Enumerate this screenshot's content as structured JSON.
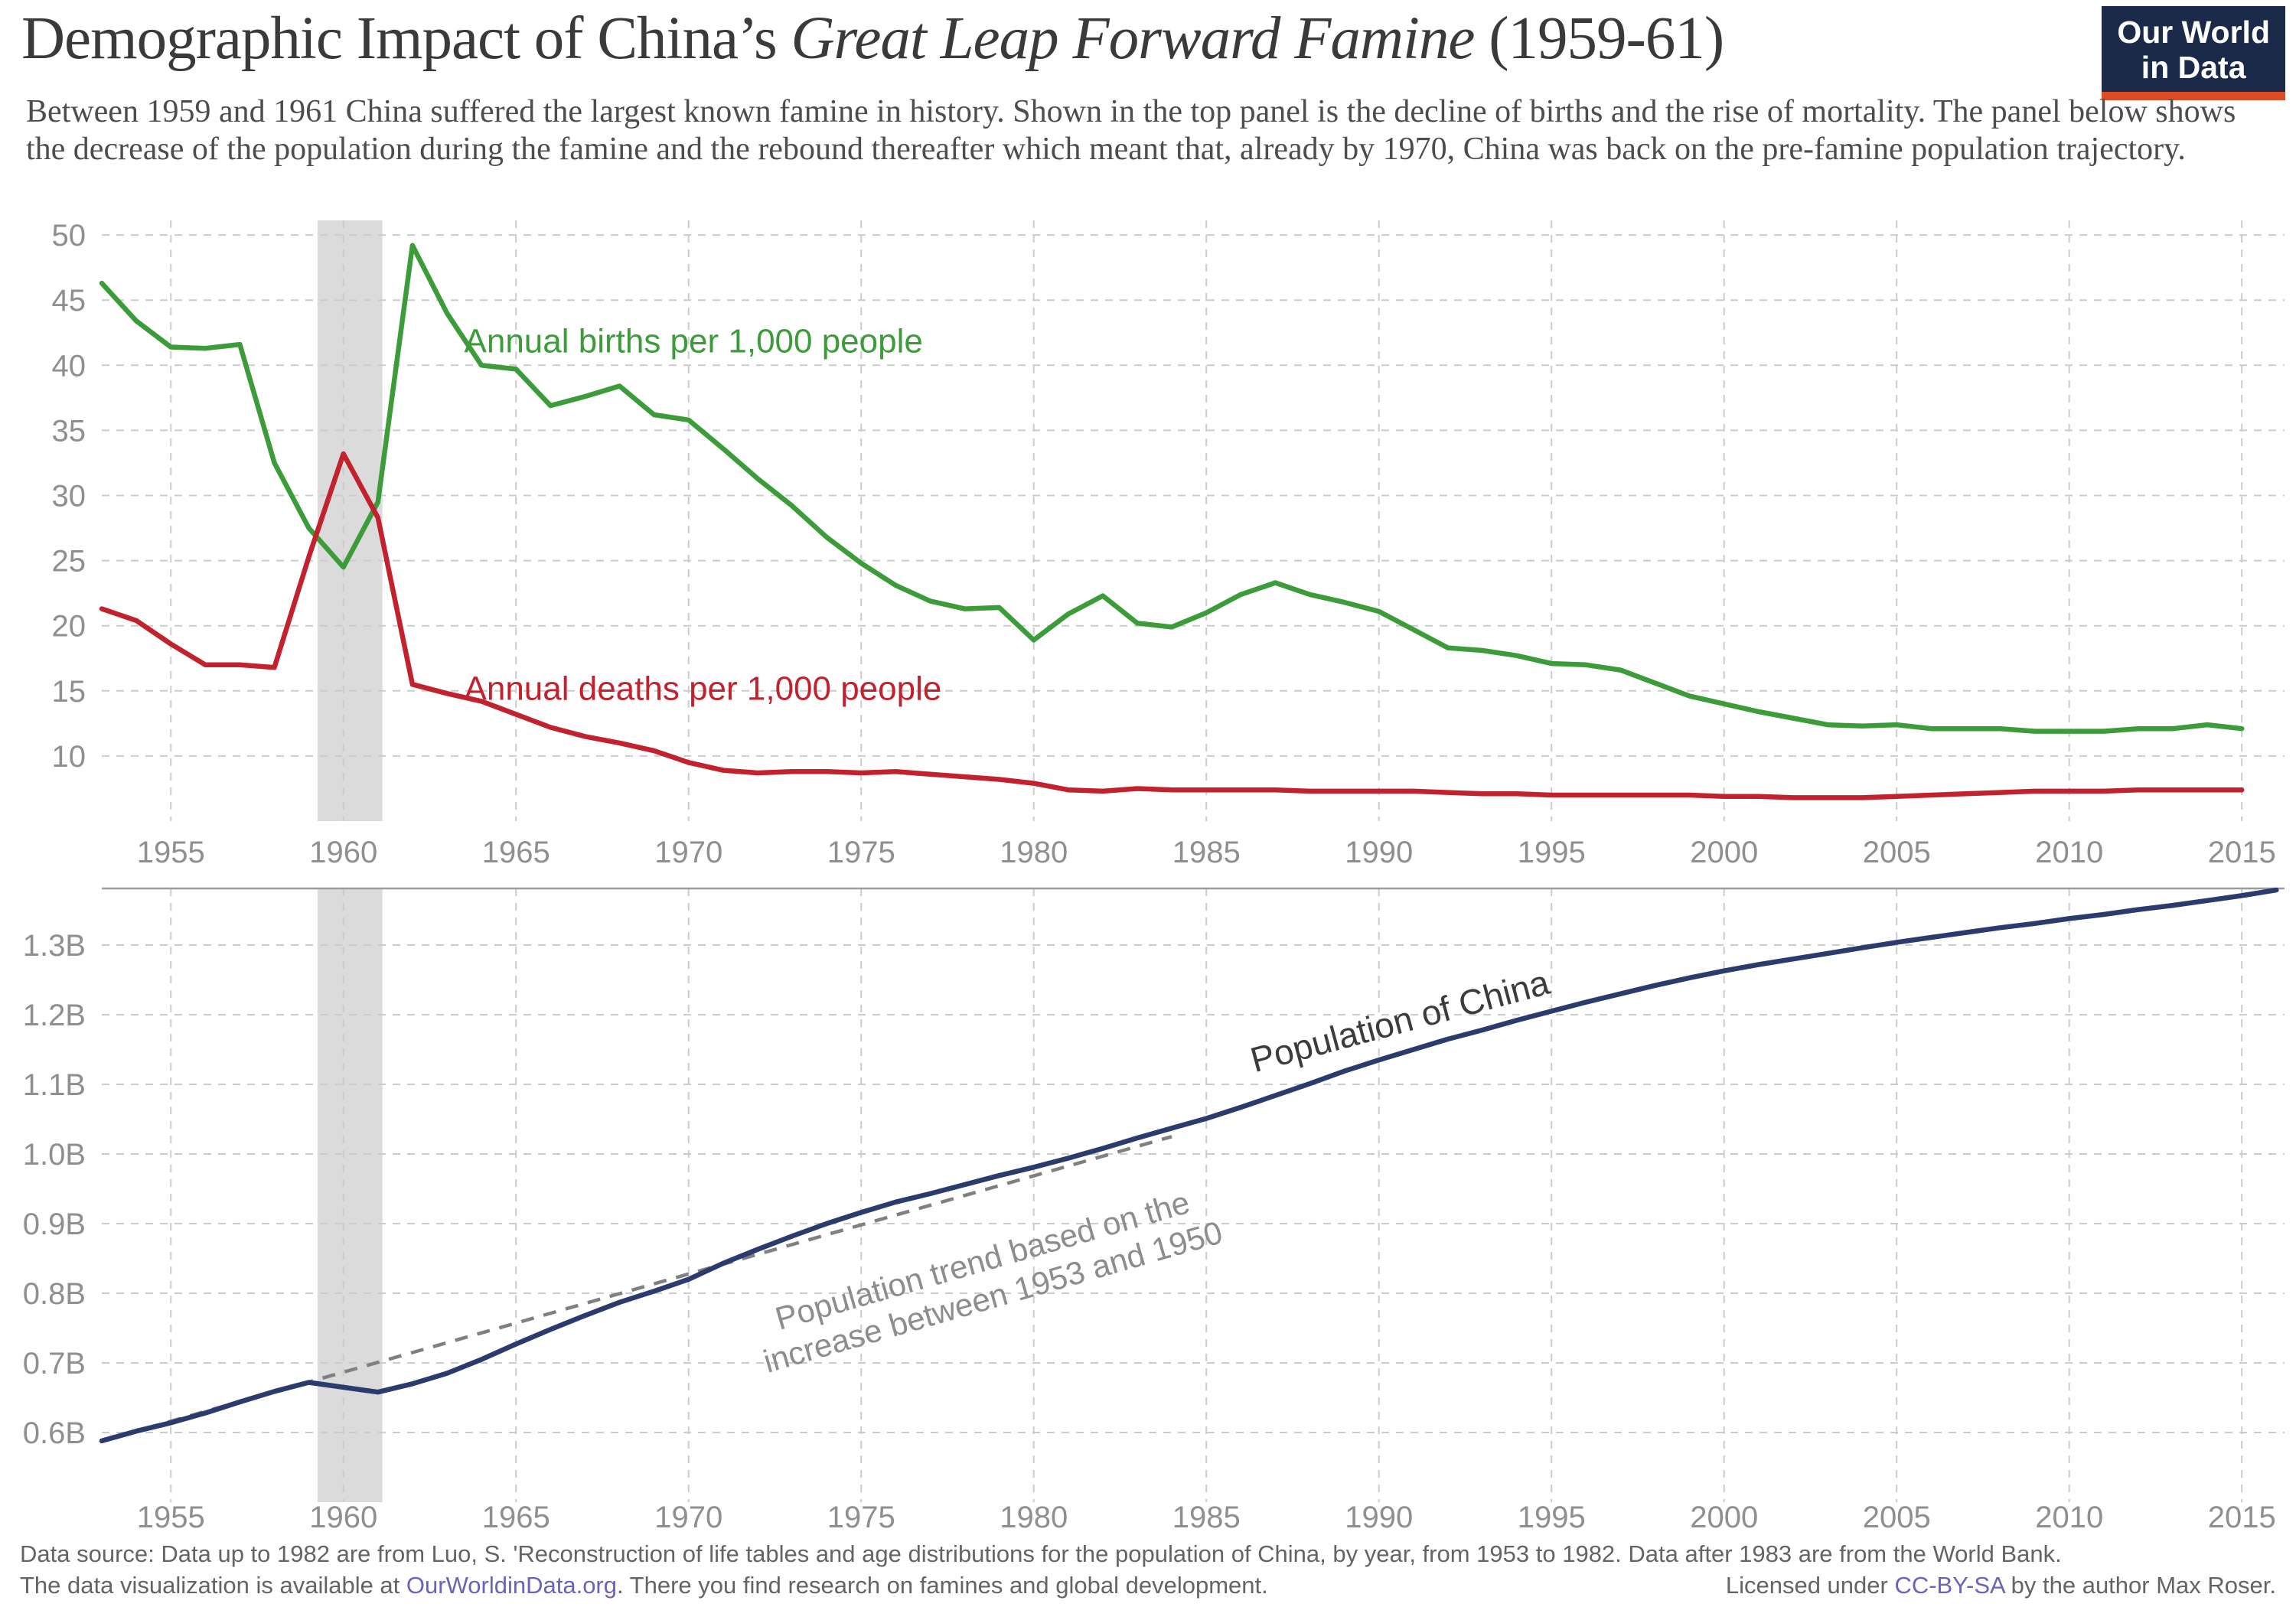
{
  "header": {
    "title_regular": "Demographic Impact of China’s ",
    "title_italic": "Great Leap Forward Famine",
    "title_suffix": " (1959-61)",
    "subtitle": "Between 1959 and 1961 China suffered the largest known famine in history. Shown in the top panel is the decline of births and the rise of mortality. The panel below shows the decrease of the population during the famine and the rebound thereafter which meant that, already by 1970, China was back on the pre-famine population trajectory.",
    "logo": {
      "line1": "Our World",
      "line2": "in Data",
      "bg_color": "#1b2a49",
      "bar_color": "#dd4b27"
    }
  },
  "chart_data": [
    {
      "type": "line",
      "panel": "top",
      "title": "Annual birth and death rates in China",
      "x_years": {
        "start": 1953,
        "end": 2015,
        "step": 1
      },
      "xlim": [
        1953,
        2016.2
      ],
      "ylim": [
        5,
        51.3
      ],
      "grid": true,
      "x_ticks": [
        1955,
        1960,
        1965,
        1970,
        1975,
        1980,
        1985,
        1990,
        1995,
        2000,
        2005,
        2010,
        2015
      ],
      "y_ticks": [
        {
          "v": 10,
          "label": "10"
        },
        {
          "v": 15,
          "label": "15"
        },
        {
          "v": 20,
          "label": "20"
        },
        {
          "v": 25,
          "label": "25"
        },
        {
          "v": 30,
          "label": "30"
        },
        {
          "v": 35,
          "label": "35"
        },
        {
          "v": 40,
          "label": "40"
        },
        {
          "v": 45,
          "label": "45"
        },
        {
          "v": 50,
          "label": "50"
        }
      ],
      "famine_band": {
        "from": 1959.25,
        "to": 1961.13,
        "color": "#dbdbdb"
      },
      "series": [
        {
          "name": "Annual births per 1,000 people",
          "color": "#3d9c3a",
          "values": [
            46.3,
            43.4,
            41.4,
            41.3,
            41.6,
            32.5,
            27.5,
            24.5,
            29.5,
            49.2,
            44.0,
            40.0,
            39.7,
            36.9,
            37.6,
            38.4,
            36.2,
            35.8,
            33.6,
            31.3,
            29.2,
            26.8,
            24.8,
            23.1,
            21.9,
            21.3,
            21.4,
            18.9,
            20.9,
            22.3,
            20.2,
            19.9,
            21.0,
            22.4,
            23.3,
            22.4,
            21.8,
            21.1,
            19.7,
            18.3,
            18.1,
            17.7,
            17.1,
            17.0,
            16.6,
            15.6,
            14.6,
            14.0,
            13.4,
            12.9,
            12.4,
            12.3,
            12.4,
            12.1,
            12.1,
            12.1,
            11.9,
            11.9,
            11.9,
            12.1,
            12.1,
            12.4,
            12.1
          ]
        },
        {
          "name": "Annual deaths per 1,000 people",
          "color": "#c2212e",
          "values": [
            21.3,
            20.4,
            18.6,
            17.0,
            17.0,
            16.8,
            25.3,
            33.2,
            28.3,
            15.5,
            14.8,
            14.2,
            13.2,
            12.2,
            11.5,
            11.0,
            10.4,
            9.5,
            8.9,
            8.7,
            8.8,
            8.8,
            8.7,
            8.8,
            8.6,
            8.4,
            8.2,
            7.9,
            7.4,
            7.3,
            7.5,
            7.4,
            7.4,
            7.4,
            7.4,
            7.3,
            7.3,
            7.3,
            7.3,
            7.2,
            7.1,
            7.1,
            7.0,
            7.0,
            7.0,
            7.0,
            7.0,
            6.9,
            6.9,
            6.8,
            6.8,
            6.8,
            6.9,
            7.0,
            7.1,
            7.2,
            7.3,
            7.3,
            7.3,
            7.4,
            7.4,
            7.4,
            7.4
          ]
        }
      ],
      "annotations": [
        {
          "name": "births-label",
          "text": [
            "Annual births per 1,000 people"
          ],
          "x": 1963.5,
          "v": 41.0,
          "color": "#3d9c3a",
          "size": 44,
          "anchor": "start",
          "rotate": 0
        },
        {
          "name": "deaths-label",
          "text": [
            "Annual deaths per 1,000 people"
          ],
          "x": 1963.5,
          "v": 14.3,
          "color": "#c2212e",
          "size": 44,
          "anchor": "start",
          "rotate": 0
        }
      ]
    },
    {
      "type": "line",
      "panel": "bottom",
      "title": "Population of China",
      "x_years": {
        "start": 1953,
        "end": 2016,
        "step": 1
      },
      "xlim": [
        1953,
        2016.2
      ],
      "ylim": [
        0.52,
        1.381
      ],
      "ylabel_unit": "billion people",
      "grid": true,
      "x_ticks": [
        1955,
        1960,
        1965,
        1970,
        1975,
        1980,
        1985,
        1990,
        1995,
        2000,
        2005,
        2010,
        2015
      ],
      "y_ticks": [
        {
          "v": 0.6,
          "label": "0.6B"
        },
        {
          "v": 0.7,
          "label": "0.7B"
        },
        {
          "v": 0.8,
          "label": "0.8B"
        },
        {
          "v": 0.9,
          "label": "0.9B"
        },
        {
          "v": 1.0,
          "label": "1.0B"
        },
        {
          "v": 1.1,
          "label": "1.1B"
        },
        {
          "v": 1.2,
          "label": "1.2B"
        },
        {
          "v": 1.3,
          "label": "1.3B"
        }
      ],
      "famine_band": {
        "from": 1959.25,
        "to": 1961.13,
        "color": "#dbdbdb"
      },
      "series": [
        {
          "name": "Population of China",
          "color": "#2c3b6d",
          "values": [
            0.588,
            0.602,
            0.614,
            0.628,
            0.644,
            0.659,
            0.672,
            0.665,
            0.658,
            0.67,
            0.685,
            0.705,
            0.727,
            0.748,
            0.768,
            0.787,
            0.803,
            0.82,
            0.843,
            0.863,
            0.882,
            0.9,
            0.916,
            0.931,
            0.943,
            0.956,
            0.969,
            0.981,
            0.994,
            1.008,
            1.023,
            1.037,
            1.051,
            1.067,
            1.084,
            1.101,
            1.119,
            1.135,
            1.15,
            1.165,
            1.178,
            1.192,
            1.205,
            1.218,
            1.23,
            1.242,
            1.253,
            1.263,
            1.272,
            1.28,
            1.288,
            1.296,
            1.304,
            1.311,
            1.318,
            1.325,
            1.331,
            1.338,
            1.344,
            1.351,
            1.357,
            1.364,
            1.371,
            1.379
          ]
        }
      ],
      "trend": {
        "name": "Population trend based on the increase between 1953 and 1950",
        "x": [
          1953,
          1984
        ],
        "values": [
          0.588,
          1.025
        ],
        "color": "#808080"
      },
      "annotations": [
        {
          "name": "population-label",
          "text": [
            "Population of China"
          ],
          "x": 1986.4,
          "v": 1.117,
          "color": "#3c3c3c",
          "size": 46,
          "anchor": "start",
          "rotate": -15
        },
        {
          "name": "trend-label",
          "text": [
            "Population trend based on the",
            "increase between 1953 and 1950"
          ],
          "x": 1978.6,
          "v": 0.832,
          "color": "#8d8d8d",
          "size": 42,
          "anchor": "middle",
          "rotate": -16
        }
      ]
    }
  ],
  "footer": {
    "line1": "Data source: Data up to 1982 are from Luo, S. 'Reconstruction of life tables and age distributions for the population of China, by year, from 1953 to 1982. Data after 1983 are from the World Bank.",
    "line2_prefix": "The data visualization is available at ",
    "link1": "OurWorldinData.org",
    "line2_suffix": ". There you find research on famines and global development.",
    "license_prefix": "Licensed under ",
    "license_link": "CC-BY-SA",
    "license_suffix": " by the author Max Roser."
  },
  "colors": {
    "births": "#3d9c3a",
    "deaths": "#c2212e",
    "population": "#2c3b6d",
    "trend": "#808080",
    "famine_band": "#dbdbdb",
    "gridline": "#cccccc",
    "tick_text": "#8f8f8f",
    "divider": "#9c9c9c",
    "link": "#6a63b8"
  }
}
